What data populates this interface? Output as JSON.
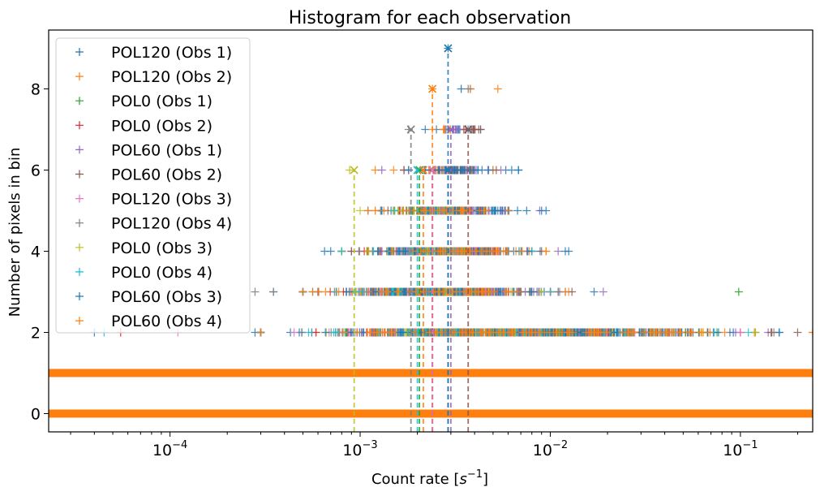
{
  "chart_data": {
    "type": "scatter",
    "title": "Histogram for each observation",
    "xlabel": "Count rate [s^-1]",
    "xlabel_parts": {
      "main": "Count rate [",
      "var": "s",
      "sup": "−1",
      "end": "]"
    },
    "ylabel": "Number of pixels in bin",
    "xscale": "log",
    "xlim": [
      2.3e-05,
      0.24
    ],
    "ylim": [
      -0.45,
      9.45
    ],
    "xticks": [
      {
        "value": 0.0001,
        "base": "10",
        "exp": "−4"
      },
      {
        "value": 0.001,
        "base": "10",
        "exp": "−3"
      },
      {
        "value": 0.01,
        "base": "10",
        "exp": "−2"
      },
      {
        "value": 0.1,
        "base": "10",
        "exp": "−1"
      }
    ],
    "yticks": [
      0,
      2,
      4,
      6,
      8
    ],
    "grid": false,
    "legend_position": "upper-left",
    "marker": "+",
    "peak_marker": "x",
    "series": [
      {
        "name": "POL120 (Obs 1)",
        "color": "#1f77b4",
        "peak_x": 0.0029,
        "peak_y": 9,
        "ranges": [
          [
            0,
            2.3e-05,
            0.24
          ],
          [
            1,
            2.3e-05,
            0.24
          ],
          [
            2,
            0.00028,
            0.16
          ],
          [
            3,
            0.00035,
            0.017
          ],
          [
            4,
            0.00065,
            0.0125
          ],
          [
            5,
            0.0011,
            0.0095
          ],
          [
            6,
            0.0018,
            0.0068
          ],
          [
            7,
            0.0022,
            0.0043
          ]
        ],
        "extra_points": [
          [
            0.0029,
            9
          ],
          [
            0.0034,
            8
          ],
          [
            0.0038,
            8
          ]
        ]
      },
      {
        "name": "POL120 (Obs 2)",
        "color": "#ff7f0e",
        "peak_x": 0.0024,
        "peak_y": 8,
        "ranges": [
          [
            0,
            2.3e-05,
            0.24
          ],
          [
            1,
            2.3e-05,
            0.24
          ],
          [
            2,
            0.0003,
            0.24
          ],
          [
            3,
            0.0005,
            0.0125
          ],
          [
            4,
            0.0011,
            0.0095
          ],
          [
            5,
            0.0012,
            0.006
          ],
          [
            6,
            0.0015,
            0.005
          ],
          [
            7,
            0.0024,
            0.0035
          ]
        ],
        "extra_points": [
          [
            0.0024,
            8
          ],
          [
            0.0038,
            8
          ],
          [
            0.0053,
            8
          ],
          [
            0.0012,
            6
          ]
        ]
      },
      {
        "name": "POL0 (Obs 1)",
        "color": "#2ca02c",
        "peak_x": 0.00205,
        "peak_y": 6,
        "ranges": [
          [
            0,
            2.3e-05,
            0.24
          ],
          [
            1,
            2.3e-05,
            0.24
          ],
          [
            2,
            0.0003,
            0.12
          ],
          [
            3,
            0.0005,
            0.011
          ],
          [
            4,
            0.0008,
            0.008
          ],
          [
            5,
            0.0013,
            0.005
          ]
        ],
        "extra_points": [
          [
            0.098,
            3
          ]
        ]
      },
      {
        "name": "POL0 (Obs 2)",
        "color": "#d62728",
        "peak_x": 0.0024,
        "peak_y": 6,
        "ranges": [
          [
            0,
            2.3e-05,
            0.24
          ],
          [
            1,
            2.3e-05,
            0.24
          ],
          [
            2,
            0.0003,
            0.1
          ],
          [
            3,
            0.0005,
            0.01
          ],
          [
            4,
            0.0008,
            0.008
          ],
          [
            5,
            0.0013,
            0.005
          ]
        ],
        "extra_points": [
          [
            5.5e-05,
            2
          ]
        ]
      },
      {
        "name": "POL60 (Obs 1)",
        "color": "#9467bd",
        "peak_x": 0.003,
        "peak_y": 7,
        "ranges": [
          [
            0,
            2.3e-05,
            0.24
          ],
          [
            1,
            2.3e-05,
            0.24
          ],
          [
            2,
            0.0003,
            0.14
          ],
          [
            3,
            0.0006,
            0.019
          ],
          [
            4,
            0.0009,
            0.011
          ],
          [
            5,
            0.0013,
            0.0088
          ],
          [
            6,
            0.0018,
            0.0055
          ],
          [
            7,
            0.0029,
            0.0036
          ]
        ],
        "extra_points": [
          [
            0.0013,
            6
          ]
        ]
      },
      {
        "name": "POL60 (Obs 2)",
        "color": "#8c564b",
        "peak_x": 0.0037,
        "peak_y": 7,
        "ranges": [
          [
            0,
            2.3e-05,
            0.24
          ],
          [
            1,
            2.3e-05,
            0.24
          ],
          [
            2,
            0.0003,
            0.2
          ],
          [
            3,
            0.0006,
            0.013
          ],
          [
            4,
            0.0009,
            0.009
          ],
          [
            5,
            0.0014,
            0.006
          ],
          [
            6,
            0.0017,
            0.0052
          ],
          [
            7,
            0.0036,
            0.0043
          ]
        ],
        "extra_points": [
          [
            0.0017,
            6
          ]
        ]
      },
      {
        "name": "POL120 (Obs 3)",
        "color": "#e377c2",
        "peak_x": 0.0024,
        "peak_y": 6,
        "ranges": [
          [
            0,
            2.3e-05,
            0.24
          ],
          [
            1,
            2.3e-05,
            0.24
          ],
          [
            2,
            0.0003,
            0.1
          ],
          [
            3,
            0.0005,
            0.01
          ],
          [
            4,
            0.0008,
            0.008
          ],
          [
            5,
            0.0015,
            0.0048
          ]
        ],
        "extra_points": [
          [
            0.00011,
            2
          ]
        ]
      },
      {
        "name": "POL120 (Obs 4)",
        "color": "#7f7f7f",
        "peak_x": 0.00185,
        "peak_y": 7,
        "ranges": [
          [
            0,
            2.3e-05,
            0.24
          ],
          [
            1,
            2.3e-05,
            0.24
          ],
          [
            2,
            0.0003,
            0.15
          ],
          [
            3,
            0.0005,
            0.011
          ],
          [
            4,
            0.0008,
            0.008
          ],
          [
            5,
            0.0013,
            0.005
          ]
        ],
        "extra_points": [
          [
            0.00028,
            3
          ],
          [
            0.00035,
            3
          ],
          [
            0.0018,
            7
          ],
          [
            0.0037,
            8
          ]
        ]
      },
      {
        "name": "POL0 (Obs 3)",
        "color": "#bcbd22",
        "peak_x": 0.00093,
        "peak_y": 6,
        "ranges": [
          [
            0,
            2.3e-05,
            0.24
          ],
          [
            1,
            2.3e-05,
            0.24
          ],
          [
            2,
            0.0003,
            0.12
          ],
          [
            3,
            0.0005,
            0.009
          ],
          [
            4,
            0.0008,
            0.007
          ],
          [
            5,
            0.001,
            0.0045
          ]
        ],
        "extra_points": [
          [
            0.00088,
            6
          ]
        ]
      },
      {
        "name": "POL0 (Obs 4)",
        "color": "#17becf",
        "peak_x": 0.002,
        "peak_y": 6,
        "ranges": [
          [
            0,
            2.3e-05,
            0.24
          ],
          [
            1,
            2.3e-05,
            0.24
          ],
          [
            2,
            0.0003,
            0.11
          ],
          [
            3,
            0.0005,
            0.01
          ],
          [
            4,
            0.0008,
            0.008
          ],
          [
            5,
            0.0013,
            0.005
          ]
        ],
        "extra_points": [
          [
            4.5e-05,
            2
          ]
        ]
      },
      {
        "name": "POL60 (Obs 3)",
        "color": "#1f77b4",
        "peak_x": 0.0029,
        "peak_y": 6,
        "ranges": [
          [
            0,
            2.3e-05,
            0.24
          ],
          [
            1,
            2.3e-05,
            0.24
          ],
          [
            2,
            0.0003,
            0.16
          ],
          [
            3,
            0.0005,
            0.012
          ],
          [
            4,
            0.0007,
            0.012
          ],
          [
            5,
            0.0013,
            0.009
          ],
          [
            6,
            0.0018,
            0.0068
          ]
        ],
        "extra_points": [
          [
            4e-05,
            2
          ]
        ]
      },
      {
        "name": "POL60 (Obs 4)",
        "color": "#ff7f0e",
        "peak_x": 0.00215,
        "peak_y": 6,
        "ranges": [
          [
            0,
            2.3e-05,
            0.24
          ],
          [
            1,
            2.3e-05,
            0.24
          ],
          [
            2,
            0.0003,
            0.24
          ],
          [
            3,
            0.0005,
            0.012
          ],
          [
            4,
            0.0011,
            0.0095
          ],
          [
            5,
            0.0012,
            0.006
          ]
        ],
        "extra_points": [
          [
            0.0011,
            5
          ]
        ]
      }
    ]
  }
}
